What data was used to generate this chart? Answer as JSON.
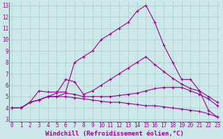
{
  "xlabel": "Windchill (Refroidissement éolien,°C)",
  "x_values": [
    0,
    1,
    2,
    3,
    4,
    5,
    6,
    7,
    8,
    9,
    10,
    11,
    12,
    13,
    14,
    15,
    16,
    17,
    18,
    19,
    20,
    21,
    22,
    23
  ],
  "series": [
    [
      4.0,
      4.0,
      4.5,
      4.7,
      5.0,
      5.3,
      6.5,
      6.3,
      5.2,
      5.5,
      6.0,
      6.5,
      7.0,
      7.5,
      8.0,
      8.5,
      7.8,
      7.2,
      6.6,
      6.1,
      5.7,
      5.5,
      5.0,
      4.5
    ],
    [
      4.0,
      4.0,
      4.5,
      5.5,
      5.4,
      5.4,
      5.4,
      8.0,
      8.5,
      9.0,
      10.0,
      10.5,
      11.0,
      11.5,
      12.5,
      13.0,
      11.5,
      9.5,
      8.0,
      6.5,
      6.5,
      5.5,
      3.8,
      3.2
    ],
    [
      4.0,
      4.0,
      4.5,
      4.7,
      5.0,
      5.0,
      5.3,
      5.2,
      5.0,
      5.0,
      5.0,
      5.0,
      5.1,
      5.2,
      5.3,
      5.5,
      5.7,
      5.8,
      5.8,
      5.8,
      5.5,
      5.2,
      4.8,
      4.2
    ],
    [
      4.0,
      4.0,
      4.5,
      4.7,
      5.0,
      5.0,
      5.0,
      4.9,
      4.8,
      4.7,
      4.6,
      4.5,
      4.5,
      4.4,
      4.3,
      4.2,
      4.2,
      4.1,
      4.0,
      3.9,
      3.8,
      3.7,
      3.5,
      3.2
    ]
  ],
  "line_color": "#990099",
  "marker": "+",
  "markersize": 3,
  "linewidth": 0.8,
  "markeredgewidth": 0.8,
  "ylim_min": 3,
  "ylim_max": 13,
  "xlim_min": 0,
  "xlim_max": 23,
  "yticks": [
    3,
    4,
    5,
    6,
    7,
    8,
    9,
    10,
    11,
    12,
    13
  ],
  "xticks": [
    0,
    1,
    2,
    3,
    4,
    5,
    6,
    7,
    8,
    9,
    10,
    11,
    12,
    13,
    14,
    15,
    16,
    17,
    18,
    19,
    20,
    21,
    22,
    23
  ],
  "bg_color": "#cce8e8",
  "grid_color": "#aacccc",
  "tick_label_fontsize": 5.5,
  "axis_label_fontsize": 6.5
}
